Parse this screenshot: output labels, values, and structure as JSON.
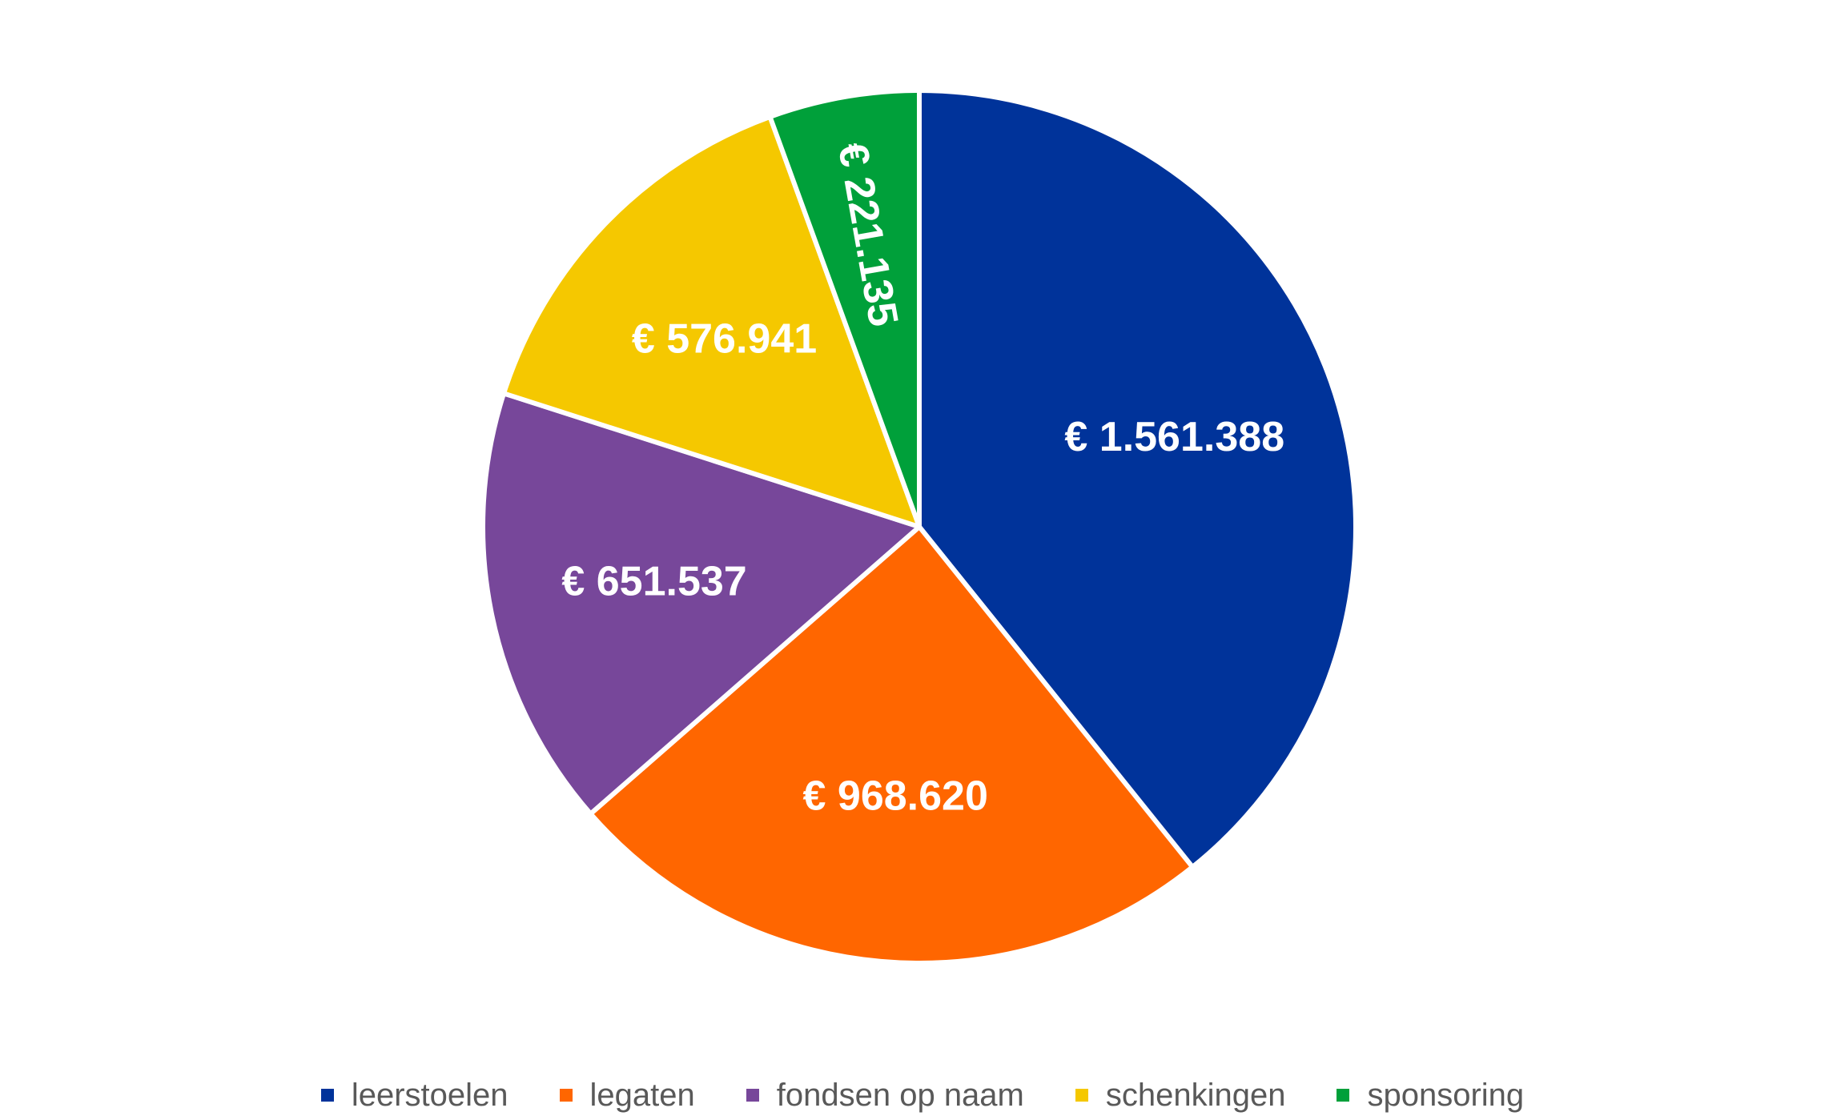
{
  "chart_data": {
    "type": "pie",
    "title": "",
    "categories": [
      "leerstoelen",
      "legaten",
      "fondsen op naam",
      "schenkingen",
      "sponsoring"
    ],
    "values": [
      1561388,
      968620,
      651537,
      576941,
      221135
    ],
    "data_labels": [
      "€ 1.561.388",
      "€ 968.620",
      "€ 651.537",
      "€ 576.941",
      "€ 221.135"
    ],
    "colors": [
      "#00339A",
      "#FF6600",
      "#77479A",
      "#F5C800",
      "#00A03A"
    ],
    "start_angle": "12 o'clock",
    "direction": "clockwise",
    "legend_position": "bottom"
  }
}
